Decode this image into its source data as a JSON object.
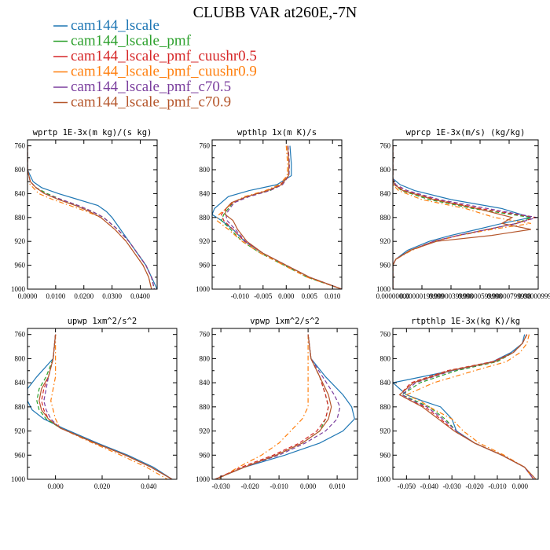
{
  "title": "CLUBB VAR at260E,-7N",
  "legend": [
    {
      "label": "cam144_lscale",
      "color": "#1f77b4",
      "dash": "solid"
    },
    {
      "label": "cam144_lscale_pmf",
      "color": "#2ca02c",
      "dash": "dash"
    },
    {
      "label": "cam144_lscale_pmf_cuushr0.5",
      "color": "#d62728",
      "dash": "dash"
    },
    {
      "label": "cam144_lscale_pmf_cuushr0.9",
      "color": "#ff7f0e",
      "dash": "dashdot"
    },
    {
      "label": "cam144_lscale_pmf_c70.5",
      "color": "#7b3f9e",
      "dash": "dash"
    },
    {
      "label": "cam144_lscale_pmf_c70.9",
      "color": "#b5562b",
      "dash": "solid"
    }
  ],
  "chart_data": [
    {
      "type": "line",
      "title": "wprtp  1E-3x(m kg)/(s kg)",
      "xlim": [
        0.0,
        0.046
      ],
      "ylim": [
        1000,
        750
      ],
      "ylabel": "",
      "xlabel": "",
      "xticks": [
        0.0,
        0.01,
        0.02,
        0.03,
        0.04
      ],
      "xticklabels": [
        "0.0000",
        "0.0100",
        "0.0200",
        "0.0300",
        "0.0400"
      ],
      "yticks": [
        760,
        800,
        840,
        880,
        920,
        960,
        1000
      ],
      "y": [
        760,
        800,
        820,
        830,
        840,
        850,
        860,
        870,
        880,
        900,
        920,
        940,
        960,
        980,
        1000
      ],
      "series": [
        {
          "values": [
            0.0,
            0.0,
            0.002,
            0.005,
            0.011,
            0.018,
            0.025,
            0.028,
            0.03,
            0.033,
            0.036,
            0.039,
            0.042,
            0.044,
            0.046
          ]
        },
        {
          "values": [
            0.0,
            0.0,
            0.001,
            0.003,
            0.007,
            0.012,
            0.018,
            0.023,
            0.027,
            0.032,
            0.036,
            0.039,
            0.042,
            0.044,
            0.045
          ]
        },
        {
          "values": [
            0.0,
            0.0,
            0.001,
            0.003,
            0.006,
            0.012,
            0.018,
            0.023,
            0.027,
            0.032,
            0.036,
            0.039,
            0.042,
            0.044,
            0.045
          ]
        },
        {
          "values": [
            0.0,
            0.0,
            0.0,
            0.002,
            0.004,
            0.009,
            0.015,
            0.021,
            0.026,
            0.031,
            0.035,
            0.038,
            0.041,
            0.043,
            0.044
          ]
        },
        {
          "values": [
            0.0,
            0.0,
            0.001,
            0.003,
            0.006,
            0.012,
            0.018,
            0.023,
            0.027,
            0.032,
            0.036,
            0.039,
            0.042,
            0.044,
            0.045
          ]
        },
        {
          "values": [
            0.0,
            0.0,
            0.001,
            0.003,
            0.006,
            0.011,
            0.017,
            0.022,
            0.026,
            0.031,
            0.035,
            0.038,
            0.041,
            0.043,
            0.044
          ]
        }
      ]
    },
    {
      "type": "line",
      "title": "wpthlp  1x(m K)/s",
      "xlim": [
        -0.016,
        0.012
      ],
      "ylim": [
        1000,
        750
      ],
      "ylabel": "",
      "xlabel": "",
      "xticks": [
        -0.01,
        -0.005,
        0.0,
        0.005,
        0.01
      ],
      "xticklabels": [
        "-0.010",
        "-0.005",
        "0.000",
        "0.005",
        "0.010"
      ],
      "yticks": [
        760,
        800,
        840,
        880,
        920,
        960,
        1000
      ],
      "y": [
        760,
        790,
        810,
        825,
        835,
        845,
        855,
        865,
        875,
        885,
        900,
        920,
        940,
        960,
        980,
        1000
      ],
      "series": [
        {
          "values": [
            0.0008,
            0.0011,
            0.0011,
            -0.002,
            -0.008,
            -0.0125,
            -0.014,
            -0.0155,
            -0.016,
            -0.014,
            -0.0115,
            -0.009,
            -0.005,
            0.0,
            0.005,
            0.012
          ]
        },
        {
          "values": [
            0.0003,
            0.0006,
            0.0005,
            -0.001,
            -0.0035,
            -0.0085,
            -0.0115,
            -0.0125,
            -0.0135,
            -0.014,
            -0.012,
            -0.0095,
            -0.0055,
            -0.0005,
            0.0045,
            0.012
          ]
        },
        {
          "values": [
            0.0003,
            0.0006,
            0.0005,
            -0.0012,
            -0.004,
            -0.0085,
            -0.0115,
            -0.013,
            -0.014,
            -0.0135,
            -0.0115,
            -0.009,
            -0.005,
            0.0,
            0.005,
            0.012
          ]
        },
        {
          "values": [
            0.0,
            0.0003,
            0.0002,
            -0.0015,
            -0.0045,
            -0.009,
            -0.0115,
            -0.013,
            -0.0145,
            -0.015,
            -0.0125,
            -0.0095,
            -0.0055,
            -0.0005,
            0.0045,
            0.012
          ]
        },
        {
          "values": [
            0.0004,
            0.0007,
            0.0006,
            -0.0008,
            -0.0035,
            -0.008,
            -0.0112,
            -0.0122,
            -0.013,
            -0.0128,
            -0.011,
            -0.0088,
            -0.005,
            0.0,
            0.005,
            0.012
          ]
        },
        {
          "values": [
            0.0003,
            0.0006,
            0.0005,
            -0.001,
            -0.004,
            -0.0085,
            -0.0118,
            -0.013,
            -0.0132,
            -0.0115,
            -0.0105,
            -0.0085,
            -0.005,
            0.0,
            0.005,
            0.012
          ]
        }
      ]
    },
    {
      "type": "line",
      "title": "wprcp  1E-3x(m/s) (kg/kg)",
      "xlim": [
        0.0,
        1e-05
      ],
      "ylim": [
        1000,
        750
      ],
      "ylabel": "",
      "xlabel": "",
      "xticks": [
        0.0,
        2e-06,
        4e-06,
        6e-06,
        8e-06,
        1e-05
      ],
      "xticklabels": [
        "0.00000000",
        "0.00000199999",
        "0.00000399998",
        "0.00000599998",
        "0.00000799998",
        "0.0000099998"
      ],
      "yticks": [
        760,
        800,
        840,
        880,
        920,
        960,
        1000
      ],
      "y": [
        760,
        800,
        815,
        825,
        835,
        850,
        865,
        880,
        890,
        900,
        910,
        920,
        935,
        950,
        960,
        970,
        1000
      ],
      "series": [
        {
          "values": [
            0.0,
            0.0,
            0.0,
            5e-07,
            1.5e-06,
            4e-06,
            7.5e-06,
            9.5e-06,
            7.5e-06,
            5.8e-06,
            4e-06,
            2.5e-06,
            1e-06,
            2e-07,
            0.0,
            0.0,
            0.0
          ]
        },
        {
          "values": [
            0.0,
            0.0,
            0.0,
            1e-07,
            6e-07,
            2.5e-06,
            5.5e-06,
            9.5e-06,
            8.5e-06,
            6.5e-06,
            4.5e-06,
            2.8e-06,
            1.2e-06,
            2e-07,
            0.0,
            0.0,
            0.0
          ]
        },
        {
          "values": [
            0.0,
            0.0,
            0.0,
            1e-07,
            8e-07,
            3e-06,
            6e-06,
            9.8e-06,
            8.5e-06,
            6.5e-06,
            4.5e-06,
            2.8e-06,
            1.2e-06,
            2e-07,
            0.0,
            0.0,
            0.0
          ]
        },
        {
          "values": [
            0.0,
            0.0,
            0.0,
            0.0,
            4e-07,
            2e-06,
            5e-06,
            7e-06,
            9.5e-06,
            6.8e-06,
            4.6e-06,
            2.9e-06,
            1.3e-06,
            2e-07,
            0.0,
            0.0,
            0.0
          ]
        },
        {
          "values": [
            0.0,
            0.0,
            0.0,
            2e-07,
            1e-06,
            3.2e-06,
            6.5e-06,
            9.9e-06,
            8.5e-06,
            6.5e-06,
            4.5e-06,
            2.8e-06,
            1.2e-06,
            2e-07,
            0.0,
            0.0,
            0.0
          ]
        },
        {
          "values": [
            0.0,
            0.0,
            0.0,
            1e-07,
            7e-07,
            2.8e-06,
            5.8e-06,
            8.2e-06,
            7.5e-06,
            9.5e-06,
            6.8e-06,
            3e-06,
            1.2e-06,
            2e-07,
            0.0,
            0.0,
            0.0
          ]
        }
      ]
    },
    {
      "type": "line",
      "title": "upwp  1xm^2/s^2",
      "xlim": [
        -0.012,
        0.052
      ],
      "ylim": [
        1000,
        750
      ],
      "ylabel": "",
      "xlabel": "",
      "xticks": [
        0.0,
        0.02,
        0.04
      ],
      "xticklabels": [
        "0.000",
        "0.020",
        "0.040"
      ],
      "yticks": [
        760,
        800,
        840,
        880,
        920,
        960,
        1000
      ],
      "y": [
        760,
        800,
        830,
        850,
        870,
        885,
        900,
        915,
        940,
        960,
        980,
        1000
      ],
      "series": [
        {
          "values": [
            0.0,
            -0.001,
            -0.008,
            -0.012,
            -0.012,
            -0.01,
            -0.005,
            0.003,
            0.018,
            0.031,
            0.042,
            0.05
          ]
        },
        {
          "values": [
            0.0,
            -0.001,
            -0.004,
            -0.007,
            -0.008,
            -0.007,
            -0.004,
            0.002,
            0.017,
            0.03,
            0.041,
            0.05
          ]
        },
        {
          "values": [
            0.0,
            -0.001,
            -0.003,
            -0.005,
            -0.006,
            -0.005,
            -0.003,
            0.002,
            0.017,
            0.03,
            0.041,
            0.05
          ]
        },
        {
          "values": [
            0.0,
            0.0,
            0.0,
            -0.001,
            -0.002,
            -0.001,
            0.0,
            0.002,
            0.016,
            0.028,
            0.039,
            0.048
          ]
        },
        {
          "values": [
            0.0,
            -0.001,
            -0.003,
            -0.004,
            -0.005,
            -0.004,
            -0.002,
            0.002,
            0.017,
            0.03,
            0.041,
            0.05
          ]
        },
        {
          "values": [
            0.0,
            -0.001,
            -0.003,
            -0.006,
            -0.007,
            -0.006,
            -0.003,
            0.002,
            0.017,
            0.03,
            0.041,
            0.05
          ]
        }
      ]
    },
    {
      "type": "line",
      "title": "vpwp  1xm^2/s^2",
      "xlim": [
        -0.033,
        0.017
      ],
      "ylim": [
        1000,
        750
      ],
      "ylabel": "",
      "xlabel": "",
      "xticks": [
        -0.03,
        -0.02,
        -0.01,
        0.0,
        0.01
      ],
      "xticklabels": [
        "-0.030",
        "-0.020",
        "-0.010",
        "0.000",
        "0.010"
      ],
      "yticks": [
        760,
        800,
        840,
        880,
        920,
        960,
        1000
      ],
      "y": [
        760,
        800,
        830,
        860,
        880,
        900,
        920,
        940,
        960,
        980,
        1000
      ],
      "series": [
        {
          "values": [
            0.0,
            0.001,
            0.006,
            0.012,
            0.015,
            0.016,
            0.012,
            0.004,
            -0.008,
            -0.022,
            -0.032
          ]
        },
        {
          "values": [
            0.0,
            0.001,
            0.004,
            0.006,
            0.007,
            0.006,
            0.004,
            -0.002,
            -0.011,
            -0.022,
            -0.032
          ]
        },
        {
          "values": [
            0.0,
            0.001,
            0.004,
            0.006,
            0.007,
            0.006,
            0.003,
            -0.003,
            -0.012,
            -0.023,
            -0.032
          ]
        },
        {
          "values": [
            0.0,
            0.0,
            0.0,
            0.0,
            0.0,
            -0.002,
            -0.006,
            -0.01,
            -0.016,
            -0.024,
            -0.031
          ]
        },
        {
          "values": [
            0.0,
            0.001,
            0.005,
            0.009,
            0.011,
            0.01,
            0.006,
            -0.001,
            -0.01,
            -0.022,
            -0.032
          ]
        },
        {
          "values": [
            0.0,
            0.001,
            0.004,
            0.007,
            0.008,
            0.007,
            0.004,
            -0.002,
            -0.011,
            -0.022,
            -0.032
          ]
        }
      ]
    },
    {
      "type": "line",
      "title": "rtpthlp  1E-3x(kg K)/kg",
      "xlim": [
        -0.056,
        0.008
      ],
      "ylim": [
        1000,
        750
      ],
      "ylabel": "",
      "xlabel": "",
      "xticks": [
        -0.05,
        -0.04,
        -0.03,
        -0.02,
        -0.01,
        0.0
      ],
      "xticklabels": [
        "-0.050",
        "-0.040",
        "-0.030",
        "-0.020",
        "-0.010",
        "0.000"
      ],
      "yticks": [
        760,
        800,
        840,
        880,
        920,
        960,
        1000
      ],
      "y": [
        760,
        775,
        790,
        805,
        820,
        840,
        860,
        870,
        880,
        900,
        920,
        940,
        960,
        980,
        1000
      ],
      "series": [
        {
          "values": [
            0.002,
            0.001,
            -0.004,
            -0.012,
            -0.03,
            -0.056,
            -0.05,
            -0.043,
            -0.035,
            -0.03,
            -0.028,
            -0.02,
            -0.008,
            0.002,
            0.006
          ]
        },
        {
          "values": [
            0.003,
            0.001,
            -0.003,
            -0.01,
            -0.028,
            -0.044,
            -0.052,
            -0.046,
            -0.04,
            -0.033,
            -0.028,
            -0.02,
            -0.008,
            0.002,
            0.006
          ]
        },
        {
          "values": [
            0.003,
            0.001,
            -0.003,
            -0.012,
            -0.032,
            -0.048,
            -0.053,
            -0.048,
            -0.042,
            -0.035,
            -0.029,
            -0.02,
            -0.008,
            0.002,
            0.006
          ]
        },
        {
          "values": [
            0.004,
            0.003,
            0.0,
            -0.006,
            -0.02,
            -0.038,
            -0.05,
            -0.044,
            -0.04,
            -0.03,
            -0.025,
            -0.018,
            -0.007,
            0.002,
            0.006
          ]
        },
        {
          "values": [
            0.003,
            0.001,
            -0.003,
            -0.011,
            -0.03,
            -0.046,
            -0.052,
            -0.047,
            -0.041,
            -0.034,
            -0.028,
            -0.02,
            -0.008,
            0.002,
            0.006
          ]
        },
        {
          "values": [
            0.003,
            0.001,
            -0.003,
            -0.011,
            -0.031,
            -0.047,
            -0.053,
            -0.048,
            -0.043,
            -0.036,
            -0.029,
            -0.02,
            -0.008,
            0.002,
            0.007
          ]
        }
      ]
    }
  ]
}
